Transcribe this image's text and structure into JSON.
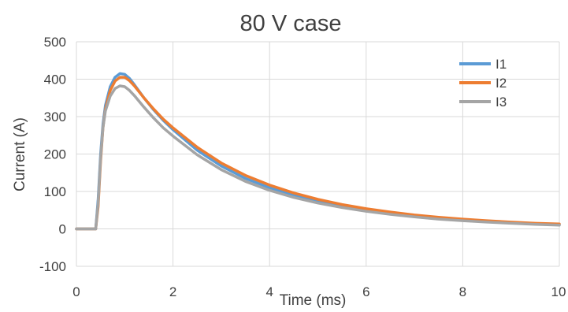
{
  "chart_data": {
    "type": "line",
    "title": "80 V case",
    "xlabel": "Time (ms)",
    "ylabel": "Current (A)",
    "xlim": [
      0,
      10
    ],
    "ylim": [
      -100,
      500
    ],
    "xticks": [
      0,
      2,
      4,
      6,
      8,
      10
    ],
    "yticks": [
      -100,
      0,
      100,
      200,
      300,
      400,
      500
    ],
    "grid": true,
    "legend_position": "top-right",
    "series": [
      {
        "name": "I1",
        "color": "#5b9bd5",
        "x": [
          0,
          0.2,
          0.4,
          0.45,
          0.5,
          0.55,
          0.6,
          0.7,
          0.8,
          0.9,
          1.0,
          1.1,
          1.2,
          1.4,
          1.6,
          1.8,
          2.0,
          2.5,
          3.0,
          3.5,
          4.0,
          4.5,
          5.0,
          5.5,
          6.0,
          6.5,
          7.0,
          7.5,
          8.0,
          8.5,
          9.0,
          9.5,
          10.0
        ],
        "y": [
          0,
          0,
          0,
          80,
          200,
          280,
          330,
          380,
          405,
          415,
          413,
          402,
          385,
          350,
          318,
          290,
          265,
          210,
          168,
          135,
          110,
          90,
          73,
          60,
          50,
          41,
          34,
          28,
          23,
          19,
          16,
          14,
          12
        ]
      },
      {
        "name": "I2",
        "color": "#ed7d31",
        "x": [
          0,
          0.2,
          0.4,
          0.45,
          0.5,
          0.55,
          0.6,
          0.7,
          0.8,
          0.9,
          1.0,
          1.1,
          1.2,
          1.4,
          1.6,
          1.8,
          2.0,
          2.5,
          3.0,
          3.5,
          4.0,
          4.5,
          5.0,
          5.5,
          6.0,
          6.5,
          7.0,
          7.5,
          8.0,
          8.5,
          9.0,
          9.5,
          10.0
        ],
        "y": [
          0,
          0,
          0,
          60,
          180,
          270,
          320,
          370,
          395,
          405,
          405,
          396,
          382,
          350,
          320,
          293,
          270,
          218,
          176,
          143,
          117,
          96,
          79,
          65,
          54,
          45,
          37,
          31,
          26,
          22,
          18,
          15,
          13
        ]
      },
      {
        "name": "I3",
        "color": "#a5a5a5",
        "x": [
          0,
          0.2,
          0.4,
          0.45,
          0.5,
          0.55,
          0.6,
          0.7,
          0.8,
          0.9,
          1.0,
          1.1,
          1.2,
          1.4,
          1.6,
          1.8,
          2.0,
          2.5,
          3.0,
          3.5,
          4.0,
          4.5,
          5.0,
          5.5,
          6.0,
          6.5,
          7.0,
          7.5,
          8.0,
          8.5,
          9.0,
          9.5,
          10.0
        ],
        "y": [
          0,
          0,
          0,
          70,
          190,
          270,
          315,
          355,
          375,
          382,
          380,
          370,
          356,
          325,
          296,
          270,
          248,
          198,
          158,
          127,
          103,
          84,
          69,
          57,
          47,
          39,
          32,
          26,
          22,
          18,
          15,
          12,
          10
        ]
      }
    ]
  }
}
